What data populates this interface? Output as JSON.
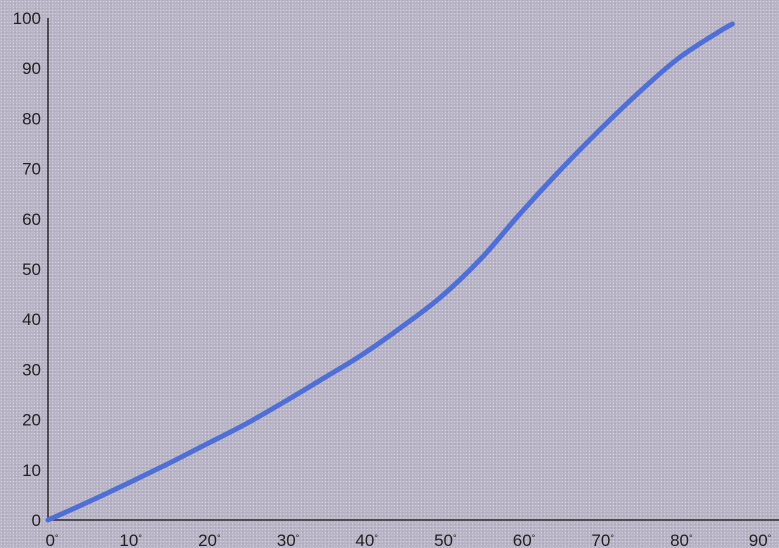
{
  "chart_data": {
    "type": "line",
    "title": "",
    "xlabel": "",
    "ylabel": "",
    "xlim": [
      0,
      90
    ],
    "ylim": [
      0,
      100
    ],
    "x_ticks": [
      {
        "value": 0,
        "label": "0°"
      },
      {
        "value": 10,
        "label": "10°"
      },
      {
        "value": 20,
        "label": "20°"
      },
      {
        "value": 30,
        "label": "30°"
      },
      {
        "value": 40,
        "label": "40°"
      },
      {
        "value": 50,
        "label": "50°"
      },
      {
        "value": 60,
        "label": "60°"
      },
      {
        "value": 70,
        "label": "70°"
      },
      {
        "value": 80,
        "label": "80°"
      },
      {
        "value": 90,
        "label": "90°"
      }
    ],
    "y_ticks": [
      {
        "value": 0,
        "label": "0"
      },
      {
        "value": 10,
        "label": "10"
      },
      {
        "value": 20,
        "label": "20"
      },
      {
        "value": 30,
        "label": "30"
      },
      {
        "value": 40,
        "label": "40"
      },
      {
        "value": 50,
        "label": "50"
      },
      {
        "value": 60,
        "label": "60"
      },
      {
        "value": 70,
        "label": "70"
      },
      {
        "value": 80,
        "label": "80"
      },
      {
        "value": 90,
        "label": "90"
      },
      {
        "value": 100,
        "label": "100"
      }
    ],
    "grid": false,
    "series": [
      {
        "color": "#4f6fd6",
        "x": [
          0,
          5,
          10,
          15,
          20,
          25,
          30,
          35,
          40,
          45,
          50,
          55,
          60,
          65,
          70,
          75,
          80,
          85,
          87
        ],
        "y": [
          0,
          3.5,
          7.2,
          11,
          15,
          19,
          23.5,
          28.2,
          33,
          38.5,
          44.5,
          52,
          61,
          69.5,
          77.5,
          85,
          91.8,
          97,
          98.8
        ]
      }
    ]
  }
}
